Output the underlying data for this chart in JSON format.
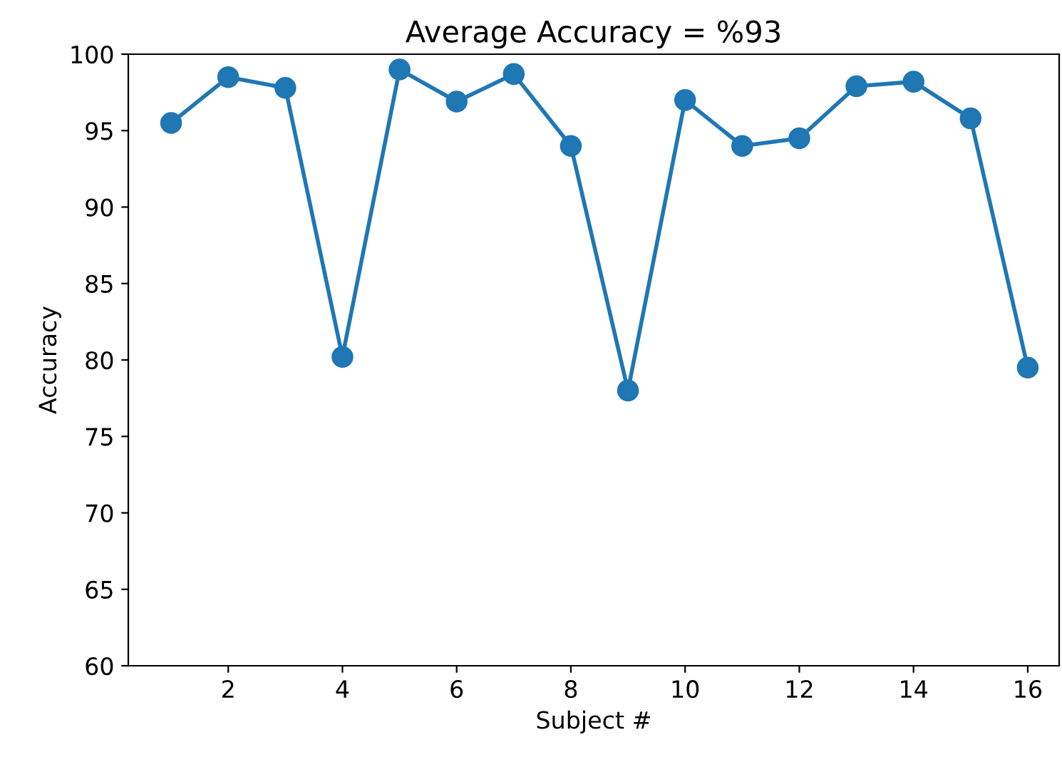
{
  "chart_data": {
    "type": "line",
    "title": "Average Accuracy = %93",
    "xlabel": "Subject #",
    "ylabel": "Accuracy",
    "x": [
      1,
      2,
      3,
      4,
      5,
      6,
      7,
      8,
      9,
      10,
      11,
      12,
      13,
      14,
      15,
      16
    ],
    "series": [
      {
        "color": "#1f77b4",
        "values": [
          95.5,
          98.5,
          97.8,
          80.2,
          99.0,
          96.9,
          98.7,
          94.0,
          78.0,
          97.0,
          94.0,
          94.5,
          97.9,
          98.2,
          95.8,
          79.5
        ]
      }
    ],
    "xlim": [
      0.25,
      16.55
    ],
    "xticks": [
      2,
      4,
      6,
      8,
      10,
      12,
      14,
      16
    ],
    "ylim": [
      60,
      100
    ],
    "yticks": [
      60,
      65,
      70,
      75,
      80,
      85,
      90,
      95,
      100
    ],
    "marker": "circle",
    "line_style": "solid",
    "grid": false,
    "legend": false
  }
}
